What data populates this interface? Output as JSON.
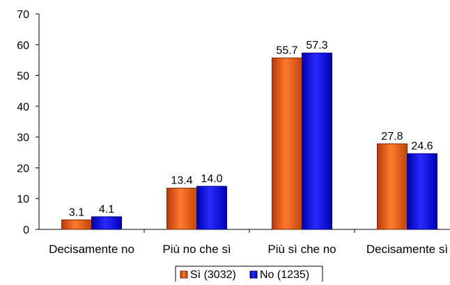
{
  "chart_data": {
    "type": "bar",
    "categories": [
      "Decisamente no",
      "Più no che sì",
      "Più sì che no",
      "Decisamente sì"
    ],
    "series": [
      {
        "name": "Sì (3032)",
        "values": [
          3.1,
          13.4,
          55.7,
          27.8
        ],
        "color": "#e85c1a"
      },
      {
        "name": "No (1235)",
        "values": [
          4.1,
          14.0,
          57.3,
          24.6
        ],
        "color": "#1a1aee"
      }
    ],
    "data_labels": [
      [
        "3.1",
        "13.4",
        "55.7",
        "27.8"
      ],
      [
        "4.1",
        "14.0",
        "57.3",
        "24.6"
      ]
    ],
    "ylim": [
      0,
      70
    ],
    "yticks": [
      0,
      10,
      20,
      30,
      40,
      50,
      60,
      70
    ],
    "grid": false,
    "legend_position": "bottom-center",
    "title": "",
    "xlabel": "",
    "ylabel": ""
  }
}
